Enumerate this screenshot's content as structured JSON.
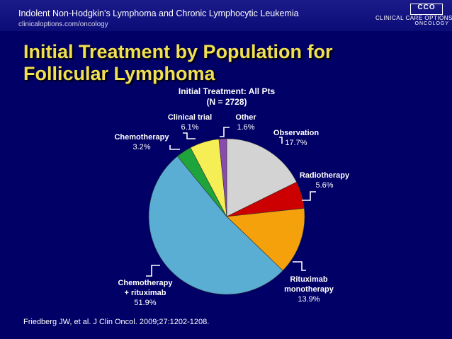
{
  "header": {
    "title": "Indolent Non-Hodgkin’s Lymphoma and Chronic Lymphocytic Leukemia",
    "url": "clinicaloptions.com/oncology",
    "logo_mark": "CCO",
    "logo_text": "CLINICAL CARE OPTIONS®",
    "logo_sub": "ONCOLOGY"
  },
  "slide_title": "Initial Treatment by Population for Follicular Lymphoma",
  "footer": "Friedberg JW, et al. J Clin Oncol. 2009;27:1202-1208.",
  "colors": {
    "background": "#000066",
    "title": "#f0e050"
  },
  "chart_data": {
    "type": "pie",
    "title": "Initial Treatment: All Pts",
    "subtitle": "(N = 2728)",
    "slices": [
      {
        "name": "Observation",
        "label_lines": [
          "Observation"
        ],
        "value": 17.7,
        "value_label": "17.7%",
        "color": "#d3d3d3"
      },
      {
        "name": "Radiotherapy",
        "label_lines": [
          "Radiotherapy"
        ],
        "value": 5.6,
        "value_label": "5.6%",
        "color": "#cc0000"
      },
      {
        "name": "Rituximab monotherapy",
        "label_lines": [
          "Rituximab",
          "monotherapy"
        ],
        "value": 13.9,
        "value_label": "13.9%",
        "color": "#f5a10c"
      },
      {
        "name": "Chemotherapy + rituximab",
        "label_lines": [
          "Chemotherapy",
          "+ rituximab"
        ],
        "value": 51.9,
        "value_label": "51.9%",
        "color": "#5aaed4"
      },
      {
        "name": "Chemotherapy",
        "label_lines": [
          "Chemotherapy"
        ],
        "value": 3.2,
        "value_label": "3.2%",
        "color": "#1ea43a"
      },
      {
        "name": "Clinical trial",
        "label_lines": [
          "Clinical trial"
        ],
        "value": 6.1,
        "value_label": "6.1%",
        "color": "#f5ee55"
      },
      {
        "name": "Other",
        "label_lines": [
          "Other"
        ],
        "value": 1.6,
        "value_label": "1.6%",
        "color": "#8a4ab0"
      }
    ]
  }
}
